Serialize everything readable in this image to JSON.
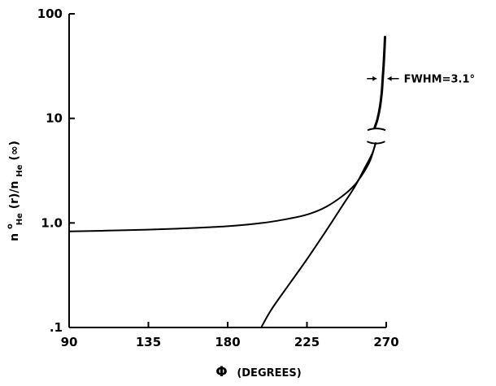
{
  "chart_data": {
    "type": "line",
    "title": "",
    "xlabel": {
      "symbol": "Φ",
      "text": "(DEGREES)"
    },
    "ylabel": {
      "n": "n",
      "sup": "o",
      "sub1": "He",
      "mid": " (r)/n",
      "sub2": "He",
      "end": " (∞)"
    },
    "xlim": [
      90,
      270
    ],
    "ylim": [
      0.1,
      100
    ],
    "y_scale": "log",
    "x_ticks": [
      {
        "value": 90,
        "label": "90"
      },
      {
        "value": 135,
        "label": "135"
      },
      {
        "value": 180,
        "label": "180"
      },
      {
        "value": 225,
        "label": "225"
      },
      {
        "value": 270,
        "label": "270"
      }
    ],
    "y_ticks": [
      {
        "value": 100,
        "label": "100"
      },
      {
        "value": 10,
        "label": "10"
      },
      {
        "value": 1,
        "label": "1.0"
      },
      {
        "value": 0.1,
        "label": ".1"
      }
    ],
    "grid": false,
    "series": [
      {
        "x": [
          90,
          120,
          150,
          180,
          200,
          215,
          225,
          235,
          245,
          252,
          257,
          261,
          264
        ],
        "values": [
          0.83,
          0.85,
          0.88,
          0.93,
          1.0,
          1.1,
          1.2,
          1.4,
          1.8,
          2.3,
          3.0,
          4.0,
          5.8
        ]
      },
      {
        "x": [
          199,
          205,
          215,
          225,
          235,
          245,
          252,
          258,
          262,
          264
        ],
        "values": [
          0.1,
          0.15,
          0.26,
          0.45,
          0.8,
          1.45,
          2.2,
          3.4,
          4.6,
          5.8
        ]
      },
      {
        "x": [
          263.5,
          265,
          266.5,
          267.5,
          268,
          268.5,
          269,
          269.3
        ],
        "values": [
          8.2,
          9.8,
          13,
          18,
          24,
          32,
          45,
          60
        ]
      }
    ],
    "annotations": [
      {
        "text": "FWHM=3.1°",
        "x": 270,
        "y": 24
      }
    ]
  }
}
